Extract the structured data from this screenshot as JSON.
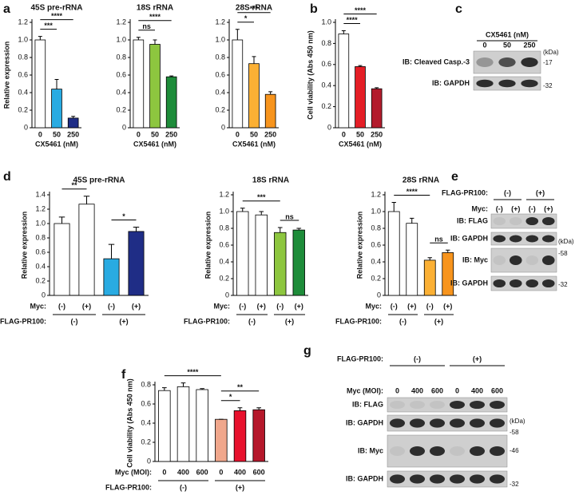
{
  "panel_labels": [
    "a",
    "b",
    "c",
    "d",
    "e",
    "f",
    "g"
  ],
  "chart_data": [
    {
      "type": "bar",
      "title": "45S pre-rRNA",
      "ylabel": "Relative expression",
      "xlabel": "CX5461 (nM)",
      "categories": [
        "0",
        "50",
        "250"
      ],
      "values": [
        1.0,
        0.44,
        0.11
      ],
      "errors": [
        0.04,
        0.11,
        0.02
      ],
      "colors": [
        "#ffffff",
        "#29abe2",
        "#1f2d86"
      ],
      "ylim": [
        0,
        1.2
      ],
      "yticks": [
        0,
        0.2,
        0.4,
        0.6,
        0.8,
        {
          "value": 1,
          "label": "1.0"
        },
        1.2
      ],
      "significance": [
        {
          "from": 0,
          "to": 1,
          "label": "***"
        },
        {
          "from": 0,
          "to": 2,
          "label": "****"
        }
      ]
    },
    {
      "type": "bar",
      "title": "18S rRNA",
      "xlabel": "CX5461 (nM)",
      "categories": [
        "0",
        "50",
        "250"
      ],
      "values": [
        1.0,
        0.95,
        0.58
      ],
      "errors": [
        0.03,
        0.05,
        0.01
      ],
      "colors": [
        "#ffffff",
        "#8dc63f",
        "#1e8c3a"
      ],
      "ylim": [
        0,
        1.2
      ],
      "yticks": [
        0,
        0.2,
        0.4,
        0.6,
        0.8,
        {
          "value": 1,
          "label": "1.0"
        },
        1.2
      ],
      "significance": [
        {
          "from": 0,
          "to": 1,
          "label": "ns"
        },
        {
          "from": 0,
          "to": 2,
          "label": "****"
        }
      ]
    },
    {
      "type": "bar",
      "title": "28S rRNA",
      "xlabel": "CX5461 (nM)",
      "categories": [
        "0",
        "50",
        "250"
      ],
      "values": [
        1.0,
        0.73,
        0.38
      ],
      "errors": [
        0.12,
        0.08,
        0.03
      ],
      "colors": [
        "#ffffff",
        "#fbb034",
        "#f7941d"
      ],
      "ylim": [
        0,
        1.2
      ],
      "yticks": [
        0,
        0.2,
        0.4,
        0.6,
        0.8,
        {
          "value": 1,
          "label": "1.0"
        },
        1.2
      ],
      "significance": [
        {
          "from": 0,
          "to": 1,
          "label": "*"
        },
        {
          "from": 0,
          "to": 2,
          "label": "***"
        }
      ]
    },
    {
      "type": "bar",
      "ylabel": "Cell viability (Abs 450 nm)",
      "xlabel": "CX5461 (nM)",
      "categories": [
        "0",
        "50",
        "250"
      ],
      "values": [
        0.89,
        0.58,
        0.37
      ],
      "errors": [
        0.03,
        0.01,
        0.01
      ],
      "colors": [
        "#ffffff",
        "#e41e26",
        "#b31b2c"
      ],
      "ylim": [
        0,
        1
      ],
      "yticks": [
        0,
        0.2,
        0.4,
        0.6,
        0.8,
        {
          "value": 1,
          "label": "1.0"
        }
      ],
      "significance": [
        {
          "from": 0,
          "to": 1,
          "label": "****"
        },
        {
          "from": 0,
          "to": 2,
          "label": "****"
        }
      ]
    },
    {
      "type": "bar",
      "title": "45S pre-rRNA",
      "ylabel": "Relative expression",
      "row_label": "Myc:",
      "group_label": "FLAG-PR100:",
      "groups": [
        "(-)",
        "(+)"
      ],
      "categories": [
        "(-)",
        "(+)",
        "(-)",
        "(+)"
      ],
      "values": [
        1.0,
        1.27,
        0.51,
        0.89
      ],
      "errors": [
        0.09,
        0.11,
        0.2,
        0.06
      ],
      "colors": [
        "#ffffff",
        "#ffffff",
        "#29abe2",
        "#1f2d86"
      ],
      "ylim": [
        0,
        1.4
      ],
      "yticks": [
        0,
        0.2,
        0.4,
        0.6,
        0.8,
        {
          "value": 1,
          "label": "1.0"
        },
        1.2,
        1.4
      ],
      "significance": [
        {
          "from": 0,
          "to": 1,
          "label": "**"
        },
        {
          "from": 2,
          "to": 3,
          "label": "*"
        }
      ]
    },
    {
      "type": "bar",
      "title": "18S rRNA",
      "ylabel": "Relative expression",
      "row_label": "Myc:",
      "group_label": "FLAG-PR100:",
      "groups": [
        "(-)",
        "(+)"
      ],
      "categories": [
        "(-)",
        "(+)",
        "(-)",
        "(+)"
      ],
      "values": [
        1.0,
        0.96,
        0.75,
        0.78
      ],
      "errors": [
        0.04,
        0.04,
        0.06,
        0.02
      ],
      "colors": [
        "#ffffff",
        "#ffffff",
        "#8dc63f",
        "#1e8c3a"
      ],
      "ylim": [
        0,
        1.2
      ],
      "yticks": [
        0,
        0.2,
        0.4,
        0.6,
        0.8,
        {
          "value": 1,
          "label": "1.0"
        },
        1.2
      ],
      "significance": [
        {
          "from": 2,
          "to": 3,
          "label": "ns"
        },
        {
          "from": 0,
          "to": 2,
          "label": "***"
        }
      ]
    },
    {
      "type": "bar",
      "title": "28S rRNA",
      "ylabel": "Relative expression",
      "row_label": "Myc:",
      "group_label": "FLAG-PR100:",
      "groups": [
        "(-)",
        "(+)"
      ],
      "categories": [
        "(-)",
        "(+)",
        "(-)",
        "(+)"
      ],
      "values": [
        1.0,
        0.86,
        0.42,
        0.51
      ],
      "errors": [
        0.11,
        0.06,
        0.03,
        0.03
      ],
      "colors": [
        "#ffffff",
        "#ffffff",
        "#fbb034",
        "#f7941d"
      ],
      "ylim": [
        0,
        1.2
      ],
      "yticks": [
        0,
        0.2,
        0.4,
        0.6,
        0.8,
        {
          "value": 1,
          "label": "1.0"
        },
        1.2
      ],
      "significance": [
        {
          "from": 2,
          "to": 3,
          "label": "ns"
        },
        {
          "from": 0,
          "to": 2,
          "label": "****"
        }
      ]
    },
    {
      "type": "bar",
      "ylabel": "Cell viability (Abs 450 nm)",
      "row_label": "Myc (MOI):",
      "group_label": "FLAG-PR100:",
      "groups": [
        "(-)",
        "(+)"
      ],
      "categories": [
        "0",
        "400",
        "600",
        "0",
        "400",
        "600"
      ],
      "values": [
        0.74,
        0.78,
        0.75,
        0.44,
        0.53,
        0.54
      ],
      "errors": [
        0.03,
        0.04,
        0.01,
        0,
        0.03,
        0.02
      ],
      "colors": [
        "#ffffff",
        "#ffffff",
        "#ffffff",
        "#f0a78c",
        "#e8112d",
        "#b5182b"
      ],
      "ylim": [
        0,
        0.8
      ],
      "yticks": [
        0,
        0.2,
        0.4,
        0.6,
        0.8
      ],
      "significance": [
        {
          "from": 3,
          "to": 4,
          "label": "*"
        },
        {
          "from": 3,
          "to": 5,
          "label": "**"
        },
        {
          "from": 0,
          "to": 3,
          "label": "****"
        }
      ]
    }
  ],
  "blots": [
    {
      "header": "CX5461 (nM)",
      "lanes": [
        "0",
        "50",
        "250"
      ],
      "rows": [
        "IB: Cleaved Casp.-3",
        "IB: GAPDH"
      ],
      "markers": [
        "(kDa)",
        "-17",
        "-32"
      ]
    },
    {
      "group_label": "FLAG-PR100:",
      "groups": [
        "(-)",
        "(+)"
      ],
      "lane_label": "Myc:",
      "lanes": [
        "(-)",
        "(+)",
        "(-)",
        "(+)"
      ],
      "rows": [
        "IB: FLAG",
        "IB: GAPDH",
        "IB: Myc",
        "IB: GAPDH"
      ],
      "markers": [
        "(kDa)",
        "-58",
        "-32"
      ]
    },
    {
      "group_label": "FLAG-PR100:",
      "groups": [
        "(-)",
        "(+)"
      ],
      "lane_label": "Myc (MOI):",
      "lanes": [
        "0",
        "400",
        "600",
        "0",
        "400",
        "600"
      ],
      "rows": [
        "IB: FLAG",
        "IB: GAPDH",
        "IB: Myc",
        "IB: GAPDH"
      ],
      "markers": [
        "(kDa)",
        "-58",
        "-46",
        "-32"
      ]
    }
  ]
}
